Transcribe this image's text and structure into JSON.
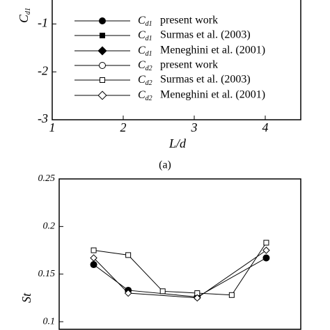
{
  "chart_data": [
    {
      "type": "line",
      "caption": "(a)",
      "x_label": "L/d",
      "y_label": {
        "symbol": "C",
        "subscript": "d1"
      },
      "xlim": [
        1,
        4.5
      ],
      "xticks": [
        1,
        2,
        3,
        4
      ],
      "ylim": [
        -3,
        -0.5
      ],
      "yticks": [
        -1,
        -2,
        -3
      ],
      "series": [
        {
          "name": "present work",
          "symbol": "C",
          "subscript": "d1",
          "marker": "circle",
          "filled": true,
          "color": "#000"
        },
        {
          "name": "Surmas et al. (2003)",
          "symbol": "C",
          "subscript": "d1",
          "marker": "square",
          "filled": true,
          "color": "#000"
        },
        {
          "name": "Meneghini et al. (2001)",
          "symbol": "C",
          "subscript": "d1",
          "marker": "diamond",
          "filled": true,
          "color": "#000"
        },
        {
          "name": "present work",
          "symbol": "C",
          "subscript": "d2",
          "marker": "circle",
          "filled": false,
          "color": "#000"
        },
        {
          "name": "Surmas et al. (2003)",
          "symbol": "C",
          "subscript": "d2",
          "marker": "square",
          "filled": false,
          "color": "#000"
        },
        {
          "name": "Meneghini et al. (2001)",
          "symbol": "C",
          "subscript": "d2",
          "marker": "diamond",
          "filled": false,
          "color": "#000"
        }
      ]
    },
    {
      "type": "line",
      "y_label": "St",
      "xlim": [
        1,
        4.5
      ],
      "ylim": [
        0.092,
        0.25
      ],
      "yticks": [
        0.25,
        0.2,
        0.15,
        0.1
      ],
      "series": [
        {
          "x": [
            1.5,
            2,
            3,
            4
          ],
          "values": [
            0.16,
            0.133,
            0.126,
            0.167
          ],
          "marker": "circle",
          "filled": true,
          "color": "#000"
        },
        {
          "x": [
            1.5,
            2,
            2.5,
            3,
            3.5,
            4
          ],
          "values": [
            0.175,
            0.17,
            0.132,
            0.13,
            0.128,
            0.183
          ],
          "marker": "square",
          "filled": false,
          "color": "#000"
        },
        {
          "x": [
            1.5,
            2,
            3,
            4
          ],
          "values": [
            0.167,
            0.13,
            0.125,
            0.175
          ],
          "marker": "diamond",
          "filled": false,
          "color": "#000"
        }
      ]
    }
  ]
}
